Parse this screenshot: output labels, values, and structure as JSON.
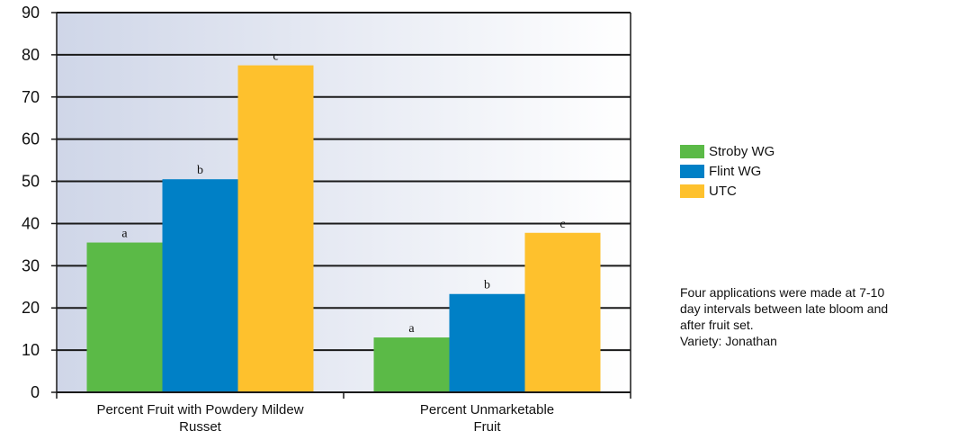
{
  "chart_data": {
    "type": "bar",
    "categories": [
      "Percent Fruit with Powdery Mildew Russet",
      "Percent Unmarketable Fruit"
    ],
    "category_lines": [
      [
        "Percent Fruit with Powdery Mildew",
        "Russet"
      ],
      [
        "Percent Unmarketable",
        "Fruit"
      ]
    ],
    "series": [
      {
        "name": "Stroby WG",
        "values": [
          35.5,
          13
        ],
        "letters": [
          "a",
          "a"
        ],
        "color": "#5bba47"
      },
      {
        "name": "Flint WG",
        "values": [
          50.5,
          23.3
        ],
        "letters": [
          "b",
          "b"
        ],
        "color": "#0080c6"
      },
      {
        "name": "UTC",
        "values": [
          77.5,
          37.8
        ],
        "letters": [
          "c",
          "c"
        ],
        "color": "#fec12d"
      }
    ],
    "ylim": [
      0,
      90
    ],
    "yticks": [
      "0",
      "10",
      "20",
      "30",
      "40",
      "50",
      "60",
      "70",
      "80",
      "90"
    ],
    "grid": true,
    "legend_position": "right"
  },
  "note": {
    "lines": [
      "Four applications were made at 7-10",
      "day intervals between late bloom and",
      "after fruit set.",
      "Variety: Jonathan"
    ]
  }
}
